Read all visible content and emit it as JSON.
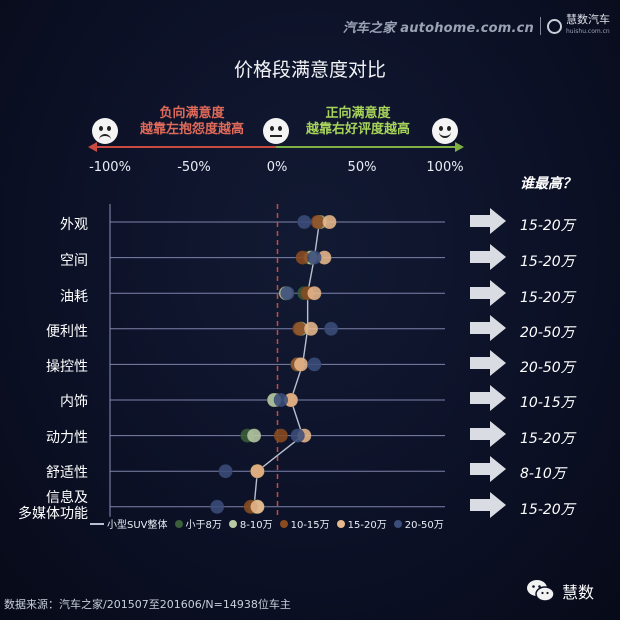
{
  "watermark": {
    "source_site": "汽车之家 autohome.com.cn",
    "brand": "慧数汽车",
    "brand_sub": "huishu.com.cn"
  },
  "title": "价格段满意度对比",
  "scale": {
    "negative_label_line1": "负向满意度",
    "negative_label_line2": "越靠左抱怨度越高",
    "positive_label_line1": "正向满意度",
    "positive_label_line2": "越靠右好评度越高"
  },
  "who_highest_label": "谁最高？",
  "chart_data": {
    "type": "scatter",
    "title": "价格段满意度对比",
    "x_ticks": [
      "-100%",
      "-50%",
      "0%",
      "50%",
      "100%"
    ],
    "xlim": [
      -100,
      100
    ],
    "categories": [
      "外观",
      "空间",
      "油耗",
      "便利性",
      "操控性",
      "内饰",
      "动力性",
      "舒适性",
      "信息及多媒体功能"
    ],
    "overall_series": {
      "name": "小型SUV整体",
      "color": "#b8c0d0",
      "values": [
        25,
        22,
        18,
        18,
        15,
        8,
        15,
        -12,
        -14
      ]
    },
    "series": [
      {
        "name": "小于8万",
        "color": "#3b5e3b",
        "values": [
          26,
          19,
          16,
          14,
          12,
          -2,
          -18,
          -12,
          -14
        ]
      },
      {
        "name": "8-10万",
        "color": "#b7c9a4",
        "values": [
          25,
          20,
          5,
          14,
          12,
          -2,
          -14,
          -12,
          -12
        ]
      },
      {
        "name": "10-15万",
        "color": "#8a4b20",
        "values": [
          24,
          15,
          18,
          13,
          12,
          8,
          2,
          -12,
          -16
        ]
      },
      {
        "name": "15-20万",
        "color": "#e8b88c",
        "values": [
          31,
          28,
          22,
          20,
          14,
          8,
          16,
          -12,
          -12
        ]
      },
      {
        "name": "20-50万",
        "color": "#3b4d7a",
        "values": [
          16,
          22,
          6,
          32,
          22,
          2,
          12,
          -31,
          -36
        ]
      }
    ],
    "winners": [
      "15-20万",
      "15-20万",
      "15-20万",
      "20-50万",
      "20-50万",
      "10-15万",
      "15-20万",
      "8-10万",
      "15-20万"
    ],
    "zero_line": "dashed",
    "legend_position": "bottom"
  },
  "category_display": [
    [
      "外观"
    ],
    [
      "空间"
    ],
    [
      "油耗"
    ],
    [
      "便利性"
    ],
    [
      "操控性"
    ],
    [
      "内饰"
    ],
    [
      "动力性"
    ],
    [
      "舒适性"
    ],
    [
      "信息及",
      "多媒体功能"
    ]
  ],
  "source_note": "数据来源：汽车之家/201507至201606/N=14938位车主",
  "wechat_label": "慧数",
  "colors": {
    "negative": "#c94a40",
    "positive": "#7fb043",
    "grid": "#8a8fb8",
    "zero_line": "#c94a40"
  },
  "icons": [
    "sad-face-icon",
    "neutral-face-icon",
    "happy-face-icon",
    "right-arrow-icon",
    "wechat-icon"
  ]
}
